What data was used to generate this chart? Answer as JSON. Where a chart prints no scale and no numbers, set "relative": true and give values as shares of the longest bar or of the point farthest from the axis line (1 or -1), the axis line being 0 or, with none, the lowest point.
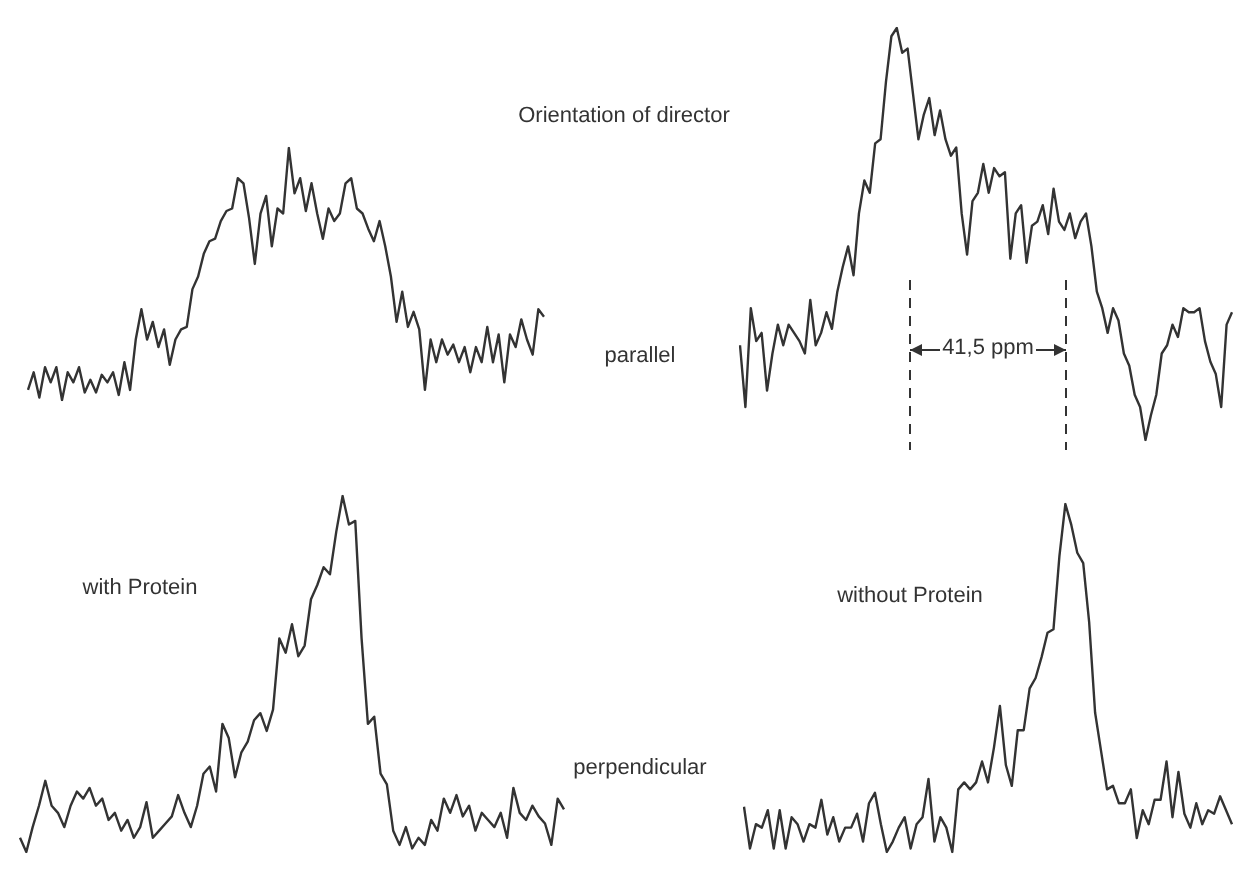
{
  "chart_data": [
    {
      "type": "line",
      "relative": true,
      "tick_labels": false,
      "annotations": [
        "Orientation of director",
        "parallel"
      ],
      "categories": [
        null,
        null,
        null,
        null,
        null,
        null,
        null,
        null,
        null,
        null,
        null,
        null,
        null,
        null,
        null,
        null,
        null,
        null,
        null,
        null,
        null,
        null,
        null,
        null,
        null,
        null,
        null,
        null,
        null,
        null,
        null,
        null,
        null,
        null,
        null,
        null,
        null,
        null,
        null,
        null,
        null,
        null,
        null,
        null,
        null,
        null,
        null,
        null,
        null,
        null,
        null,
        null,
        null,
        null,
        null,
        null,
        null,
        null,
        null,
        null,
        null,
        null,
        null,
        null,
        null,
        null,
        null,
        null,
        null,
        null,
        null,
        null,
        null,
        null,
        null,
        null,
        null,
        null,
        null,
        null,
        null,
        null,
        null,
        null,
        null,
        null,
        null,
        null,
        null,
        null,
        null,
        null
      ],
      "series": [
        {
          "color": "#333333",
          "values": [
            0.04,
            0.11,
            0.01,
            0.13,
            0.07,
            0.13,
            0,
            0.11,
            0.07,
            0.13,
            0.03,
            0.08,
            0.03,
            0.1,
            0.07,
            0.11,
            0.02,
            0.15,
            0.04,
            0.24,
            0.36,
            0.24,
            0.31,
            0.21,
            0.28,
            0.14,
            0.24,
            0.28,
            0.29,
            0.44,
            0.49,
            0.58,
            0.63,
            0.64,
            0.71,
            0.75,
            0.76,
            0.88,
            0.86,
            0.72,
            0.54,
            0.74,
            0.81,
            0.61,
            0.76,
            0.74,
            1,
            0.82,
            0.88,
            0.75,
            0.86,
            0.74,
            0.64,
            0.76,
            0.71,
            0.74,
            0.86,
            0.88,
            0.76,
            0.74,
            0.68,
            0.63,
            0.71,
            0.61,
            0.49,
            0.31,
            0.43,
            0.29,
            0.35,
            0.28,
            0.04,
            0.24,
            0.15,
            0.24,
            0.18,
            0.22,
            0.15,
            0.21,
            0.11,
            0.21,
            0.15,
            0.29,
            0.15,
            0.26,
            0.07,
            0.26,
            0.21,
            0.32,
            0.24,
            0.18,
            0.36,
            0.33
          ]
        }
      ]
    },
    {
      "type": "line",
      "relative": true,
      "tick_labels": false,
      "annotations": [
        "41,5 ppm"
      ],
      "categories": [
        null,
        null,
        null,
        null,
        null,
        null,
        null,
        null,
        null,
        null,
        null,
        null,
        null,
        null,
        null,
        null,
        null,
        null,
        null,
        null,
        null,
        null,
        null,
        null,
        null,
        null,
        null,
        null,
        null,
        null,
        null,
        null,
        null,
        null,
        null,
        null,
        null,
        null,
        null,
        null,
        null,
        null,
        null,
        null,
        null,
        null,
        null,
        null,
        null,
        null,
        null,
        null,
        null,
        null,
        null,
        null,
        null,
        null,
        null,
        null,
        null,
        null,
        null,
        null,
        null,
        null,
        null,
        null,
        null,
        null,
        null,
        null,
        null,
        null,
        null,
        null,
        null,
        null,
        null,
        null,
        null,
        null,
        null,
        null,
        null,
        null,
        null,
        null,
        null,
        null,
        null,
        null
      ],
      "series": [
        {
          "color": "#333333",
          "values": [
            0.23,
            0.08,
            0.32,
            0.24,
            0.26,
            0.12,
            0.21,
            0.28,
            0.23,
            0.28,
            0.26,
            0.24,
            0.21,
            0.34,
            0.23,
            0.26,
            0.31,
            0.27,
            0.36,
            0.42,
            0.47,
            0.4,
            0.55,
            0.63,
            0.6,
            0.72,
            0.73,
            0.87,
            0.98,
            1,
            0.94,
            0.95,
            0.84,
            0.73,
            0.79,
            0.83,
            0.74,
            0.8,
            0.73,
            0.69,
            0.71,
            0.55,
            0.45,
            0.58,
            0.6,
            0.67,
            0.6,
            0.66,
            0.64,
            0.65,
            0.44,
            0.55,
            0.57,
            0.43,
            0.52,
            0.53,
            0.57,
            0.5,
            0.61,
            0.53,
            0.51,
            0.55,
            0.49,
            0.53,
            0.55,
            0.47,
            0.36,
            0.32,
            0.26,
            0.32,
            0.29,
            0.21,
            0.18,
            0.11,
            0.08,
            0,
            0.06,
            0.11,
            0.21,
            0.23,
            0.28,
            0.25,
            0.32,
            0.31,
            0.31,
            0.32,
            0.24,
            0.19,
            0.16,
            0.08,
            0.28,
            0.31
          ]
        }
      ]
    },
    {
      "type": "line",
      "relative": true,
      "tick_labels": false,
      "annotations": [
        "with Protein",
        "perpendicular"
      ],
      "categories": [
        null,
        null,
        null,
        null,
        null,
        null,
        null,
        null,
        null,
        null,
        null,
        null,
        null,
        null,
        null,
        null,
        null,
        null,
        null,
        null,
        null,
        null,
        null,
        null,
        null,
        null,
        null,
        null,
        null,
        null,
        null,
        null,
        null,
        null,
        null,
        null,
        null,
        null,
        null,
        null,
        null,
        null,
        null,
        null,
        null,
        null,
        null,
        null,
        null,
        null,
        null,
        null,
        null,
        null,
        null,
        null,
        null,
        null,
        null,
        null,
        null,
        null,
        null,
        null,
        null,
        null,
        null,
        null,
        null,
        null,
        null,
        null,
        null,
        null,
        null,
        null,
        null,
        null,
        null,
        null,
        null,
        null,
        null,
        null,
        null,
        null,
        null
      ],
      "series": [
        {
          "color": "#333333",
          "values": [
            0.04,
            0,
            0.07,
            0.13,
            0.2,
            0.13,
            0.11,
            0.07,
            0.13,
            0.17,
            0.15,
            0.18,
            0.13,
            0.15,
            0.09,
            0.11,
            0.06,
            0.09,
            0.04,
            0.07,
            0.14,
            0.04,
            0.06,
            0.08,
            0.1,
            0.16,
            0.11,
            0.07,
            0.13,
            0.22,
            0.24,
            0.17,
            0.36,
            0.32,
            0.21,
            0.28,
            0.31,
            0.37,
            0.39,
            0.34,
            0.4,
            0.6,
            0.56,
            0.64,
            0.55,
            0.58,
            0.71,
            0.75,
            0.8,
            0.78,
            0.9,
            1,
            0.92,
            0.93,
            0.6,
            0.36,
            0.38,
            0.22,
            0.19,
            0.06,
            0.02,
            0.07,
            0.01,
            0.04,
            0.02,
            0.09,
            0.06,
            0.15,
            0.11,
            0.16,
            0.1,
            0.13,
            0.06,
            0.11,
            0.09,
            0.07,
            0.11,
            0.04,
            0.18,
            0.11,
            0.09,
            0.13,
            0.1,
            0.08,
            0.02,
            0.15,
            0.12
          ]
        }
      ]
    },
    {
      "type": "line",
      "relative": true,
      "tick_labels": false,
      "annotations": [
        "without Protein"
      ],
      "categories": [
        null,
        null,
        null,
        null,
        null,
        null,
        null,
        null,
        null,
        null,
        null,
        null,
        null,
        null,
        null,
        null,
        null,
        null,
        null,
        null,
        null,
        null,
        null,
        null,
        null,
        null,
        null,
        null,
        null,
        null,
        null,
        null,
        null,
        null,
        null,
        null,
        null,
        null,
        null,
        null,
        null,
        null,
        null,
        null,
        null,
        null,
        null,
        null,
        null,
        null,
        null,
        null,
        null,
        null,
        null,
        null,
        null,
        null,
        null,
        null,
        null,
        null,
        null,
        null,
        null,
        null,
        null,
        null,
        null,
        null,
        null,
        null,
        null,
        null,
        null,
        null,
        null,
        null,
        null,
        null,
        null,
        null,
        null
      ],
      "series": [
        {
          "color": "#333333",
          "values": [
            0.13,
            0.01,
            0.08,
            0.07,
            0.12,
            0.01,
            0.12,
            0.01,
            0.1,
            0.08,
            0.03,
            0.08,
            0.07,
            0.15,
            0.05,
            0.1,
            0.03,
            0.07,
            0.07,
            0.11,
            0.03,
            0.14,
            0.17,
            0.08,
            0,
            0.03,
            0.07,
            0.1,
            0.01,
            0.08,
            0.1,
            0.21,
            0.03,
            0.1,
            0.07,
            0,
            0.18,
            0.2,
            0.18,
            0.2,
            0.26,
            0.2,
            0.3,
            0.42,
            0.25,
            0.19,
            0.35,
            0.35,
            0.47,
            0.5,
            0.56,
            0.63,
            0.64,
            0.85,
            1,
            0.94,
            0.86,
            0.83,
            0.66,
            0.4,
            0.29,
            0.18,
            0.19,
            0.14,
            0.14,
            0.18,
            0.04,
            0.12,
            0.08,
            0.15,
            0.15,
            0.26,
            0.1,
            0.23,
            0.11,
            0.07,
            0.14,
            0.08,
            0.12,
            0.11,
            0.16,
            0.12,
            0.08
          ]
        }
      ]
    }
  ]
}
